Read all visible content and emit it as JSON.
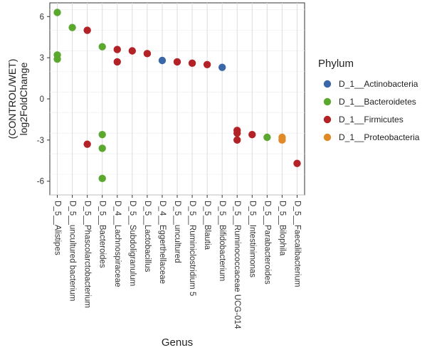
{
  "chart_data": {
    "type": "scatter",
    "xlabel": "Genus",
    "ylabel_lines": [
      "(CONTROL/WET)",
      "log2FoldChange"
    ],
    "ylim": [
      -7,
      7
    ],
    "yticks": [
      -6,
      -3,
      0,
      3,
      6
    ],
    "grid": true,
    "legend_position": "right",
    "categories": [
      "D_5__Alistipes",
      "D_5__uncultured bacterium",
      "D_5__Phascolarctobacterium",
      "D_5__Bacteroides",
      "D_4__Lachnospiraceae",
      "D_5__Subdoligranulum",
      "D_5__Lactobacillus",
      "D_4__Eggerthellaceae",
      "D_5__uncultured",
      "D_5__Ruminiclostridium 5",
      "D_5__Blautia",
      "D_5__Bifidobacterium",
      "D_5__Ruminococcaceae UCG-014",
      "D_5__Intestinimonas",
      "D_5__Parabacteroides",
      "D_5__Bilophila",
      "D_5__Faecalibacterium"
    ],
    "legend": {
      "title": "Phylum",
      "entries": [
        {
          "label": "D_1__Actinobacteria",
          "color": "#3A67A8"
        },
        {
          "label": "D_1__Bacteroidetes",
          "color": "#5BA82F"
        },
        {
          "label": "D_1__Firmicutes",
          "color": "#B32227"
        },
        {
          "label": "D_1__Proteobacteria",
          "color": "#E08A27"
        }
      ]
    },
    "series": [
      {
        "name": "D_1__Actinobacteria",
        "points": [
          {
            "x": "D_4__Eggerthellaceae",
            "y": 2.8
          },
          {
            "x": "D_5__Bifidobacterium",
            "y": 2.3
          }
        ]
      },
      {
        "name": "D_1__Bacteroidetes",
        "points": [
          {
            "x": "D_5__Alistipes",
            "y": 6.3
          },
          {
            "x": "D_5__Alistipes",
            "y": 3.2
          },
          {
            "x": "D_5__Alistipes",
            "y": 2.9
          },
          {
            "x": "D_5__uncultured bacterium",
            "y": 5.2
          },
          {
            "x": "D_5__Bacteroides",
            "y": 3.8
          },
          {
            "x": "D_5__Bacteroides",
            "y": -2.6
          },
          {
            "x": "D_5__Bacteroides",
            "y": -3.6
          },
          {
            "x": "D_5__Bacteroides",
            "y": -5.8
          },
          {
            "x": "D_5__Parabacteroides",
            "y": -2.8
          }
        ]
      },
      {
        "name": "D_1__Firmicutes",
        "points": [
          {
            "x": "D_5__Phascolarctobacterium",
            "y": 5.0
          },
          {
            "x": "D_5__Phascolarctobacterium",
            "y": -3.3
          },
          {
            "x": "D_4__Lachnospiraceae",
            "y": 3.6
          },
          {
            "x": "D_4__Lachnospiraceae",
            "y": 2.7
          },
          {
            "x": "D_5__Subdoligranulum",
            "y": 3.5
          },
          {
            "x": "D_5__Lactobacillus",
            "y": 3.3
          },
          {
            "x": "D_5__uncultured",
            "y": 2.7
          },
          {
            "x": "D_5__Ruminiclostridium 5",
            "y": 2.6
          },
          {
            "x": "D_5__Blautia",
            "y": 2.5
          },
          {
            "x": "D_5__Ruminococcaceae UCG-014",
            "y": -2.3
          },
          {
            "x": "D_5__Ruminococcaceae UCG-014",
            "y": -2.5
          },
          {
            "x": "D_5__Ruminococcaceae UCG-014",
            "y": -3.0
          },
          {
            "x": "D_5__Intestinimonas",
            "y": -2.6
          },
          {
            "x": "D_5__Faecalibacterium",
            "y": -4.7
          }
        ]
      },
      {
        "name": "D_1__Proteobacteria",
        "points": [
          {
            "x": "D_5__Bilophila",
            "y": -2.8
          },
          {
            "x": "D_5__Bilophila",
            "y": -3.0
          }
        ]
      }
    ]
  }
}
